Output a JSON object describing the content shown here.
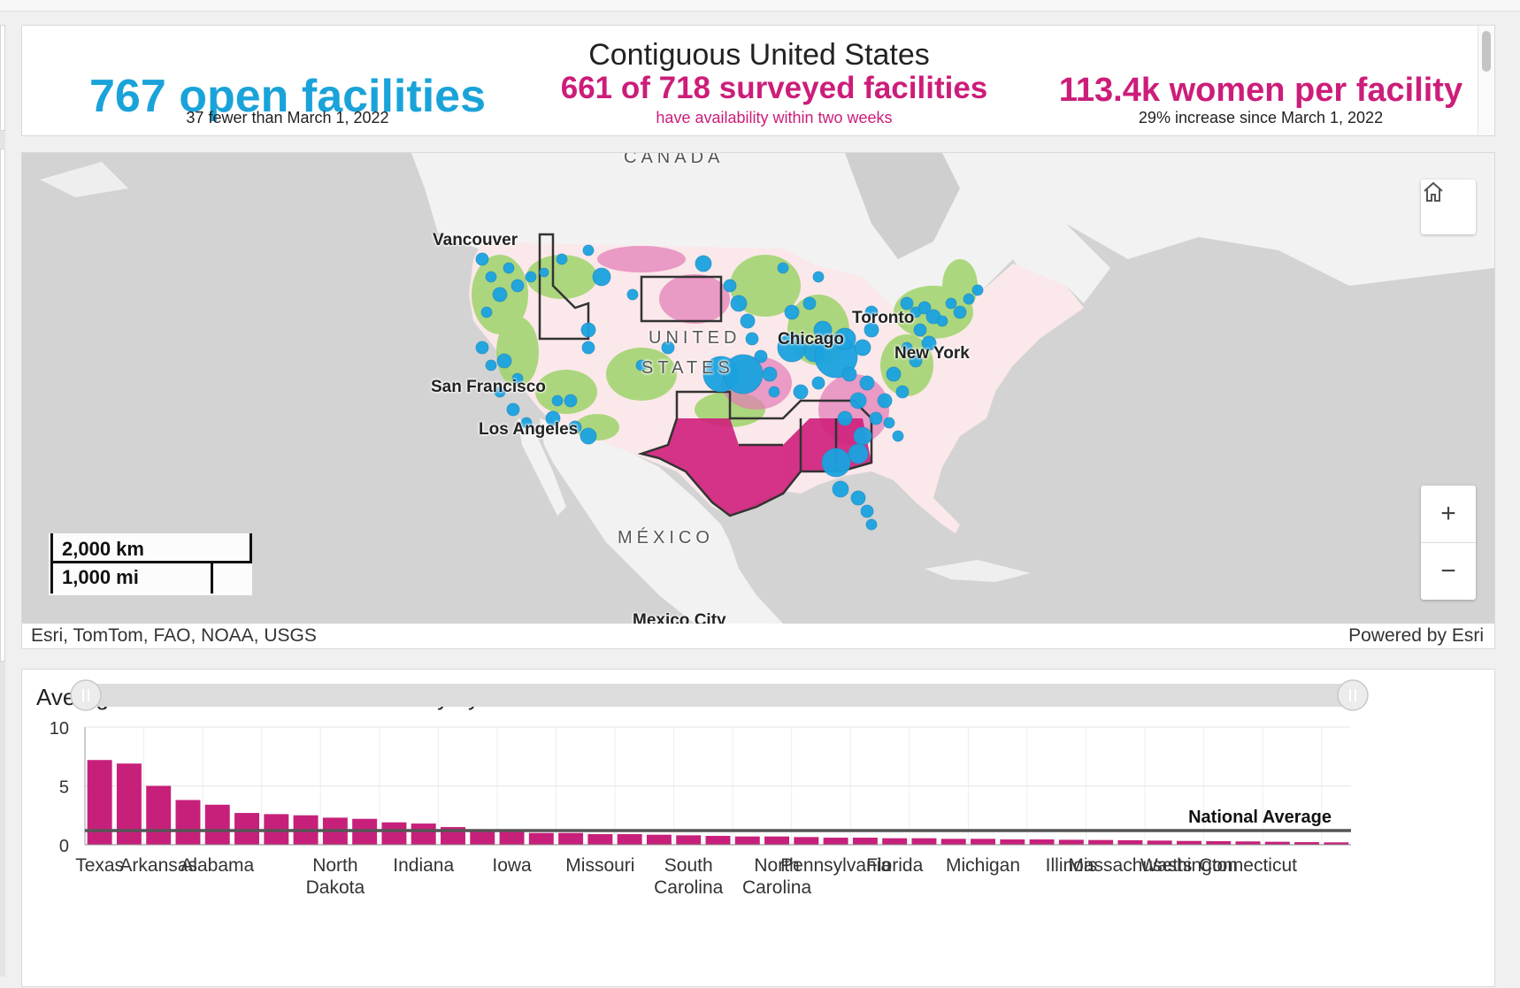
{
  "kpis": {
    "title": "Contiguous United States",
    "open_facilities": {
      "value": "767 open facilities",
      "subtitle": "37 fewer than March 1, 2022"
    },
    "surveyed": {
      "value": "661 of 718 surveyed facilities",
      "subtitle": "have availability within two weeks"
    },
    "women_per_facility": {
      "value": "113.4k women per facility",
      "subtitle": "29% increase since March 1, 2022"
    }
  },
  "map": {
    "labels": {
      "canada": "CANADA",
      "united": "UNITED",
      "states": "STATES",
      "mexico": "MÉXICO",
      "mexico_city": "Mexico City",
      "vancouver": "Vancouver",
      "san_francisco": "San Francisco",
      "los_angeles": "Los Angeles",
      "chicago": "Chicago",
      "toronto": "Toronto",
      "new_york": "New York"
    },
    "scale": {
      "km": "2,000 km",
      "mi": "1,000 mi"
    },
    "attribution": "Esri, TomTom, FAO, NOAA, USGS",
    "powered_by": "Powered by Esri",
    "zoom_in": "+",
    "zoom_out": "−",
    "colors": {
      "facility": "#1aa3e0",
      "low_access": "#d11f7d",
      "high_access": "#8fcf5a"
    }
  },
  "chart": {
    "title": "Average Travel Hours to Nearest Facility by State",
    "reference_label": "National Average"
  },
  "chart_data": {
    "type": "bar",
    "title": "Average Travel Hours to Nearest Facility by State",
    "ylim": [
      0,
      10
    ],
    "yticks": [
      0,
      5,
      10
    ],
    "categories": [
      "Texas",
      "",
      "Arkansas",
      "",
      "Alabama",
      "",
      "",
      "",
      "North Dakota",
      "",
      "",
      "Indiana",
      "",
      "",
      "Iowa",
      "",
      "",
      "Missouri",
      "",
      "",
      "South Carolina",
      "",
      "",
      "North Carolina",
      "",
      "Pennsylvania",
      "",
      "Florida",
      "",
      "",
      "Michigan",
      "",
      "",
      "Illinois",
      "",
      "Massachusetts",
      "",
      "Washington",
      "",
      "Connecticut",
      "",
      "",
      ""
    ],
    "tick_labels": [
      "Texas",
      "Arkansas",
      "Alabama",
      "North Dakota",
      "Indiana",
      "Iowa",
      "Missouri",
      "South Carolina",
      "North Carolina",
      "Pennsylvania",
      "Florida",
      "Michigan",
      "Illinois",
      "Massachusetts",
      "Washington",
      "Connecticut"
    ],
    "values": [
      7.2,
      6.9,
      5.0,
      3.8,
      3.4,
      2.7,
      2.6,
      2.5,
      2.3,
      2.2,
      1.9,
      1.8,
      1.5,
      1.3,
      1.1,
      1.0,
      1.0,
      0.9,
      0.9,
      0.85,
      0.8,
      0.75,
      0.7,
      0.7,
      0.65,
      0.6,
      0.6,
      0.55,
      0.55,
      0.5,
      0.5,
      0.45,
      0.45,
      0.42,
      0.4,
      0.38,
      0.35,
      0.32,
      0.3,
      0.28,
      0.25,
      0.22,
      0.2
    ],
    "reference_line": {
      "name": "National Average",
      "value": 1.2
    },
    "bar_color": "#c7207a",
    "grid": true
  }
}
